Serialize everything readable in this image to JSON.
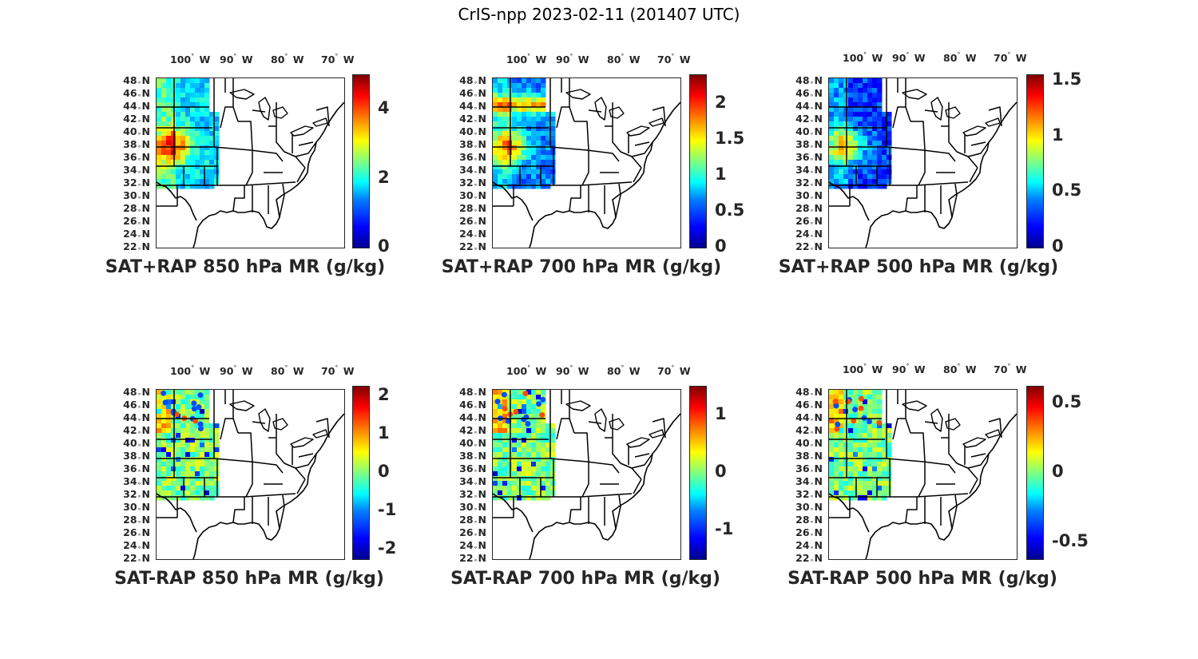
{
  "figure": {
    "title": "CrIS-npp 2023-02-11 (201407 UTC)"
  },
  "axes": {
    "lon_labels": [
      "100",
      "90",
      "80",
      "70"
    ],
    "lon_suffix": "W",
    "lat_labels": [
      "48",
      "46",
      "44",
      "42",
      "40",
      "38",
      "36",
      "34",
      "32",
      "30",
      "28",
      "26",
      "24",
      "22"
    ],
    "lat_suffix": "N",
    "degree_symbol": "°"
  },
  "panels": [
    {
      "id": "p1",
      "title": "SAT+RAP 850 hPa MR (g/kg)",
      "kind": "total",
      "colorbar": {
        "min": 0,
        "max": 5,
        "ticks": [
          "0",
          "2",
          "4"
        ],
        "tick_values": [
          0,
          2,
          4
        ]
      }
    },
    {
      "id": "p2",
      "title": "SAT+RAP 700 hPa MR (g/kg)",
      "kind": "total",
      "colorbar": {
        "min": 0,
        "max": 2.4,
        "ticks": [
          "0",
          "0.5",
          "1",
          "1.5",
          "2"
        ],
        "tick_values": [
          0,
          0.5,
          1,
          1.5,
          2
        ]
      }
    },
    {
      "id": "p3",
      "title": "SAT+RAP 500 hPa MR (g/kg)",
      "kind": "total",
      "colorbar": {
        "min": 0,
        "max": 1.55,
        "ticks": [
          "0",
          "0.5",
          "1",
          "1.5"
        ],
        "tick_values": [
          0,
          0.5,
          1,
          1.5
        ]
      }
    },
    {
      "id": "p4",
      "title": "SAT-RAP 850 hPa MR (g/kg)",
      "kind": "diff",
      "colorbar": {
        "min": -2.25,
        "max": 2.25,
        "ticks": [
          "-2",
          "-1",
          "0",
          "1",
          "2"
        ],
        "tick_values": [
          -2,
          -1,
          0,
          1,
          2
        ]
      }
    },
    {
      "id": "p5",
      "title": "SAT-RAP 700 hPa MR (g/kg)",
      "kind": "diff",
      "colorbar": {
        "min": -1.5,
        "max": 1.5,
        "ticks": [
          "-1",
          "0",
          "1"
        ],
        "tick_values": [
          -1,
          0,
          1
        ]
      }
    },
    {
      "id": "p6",
      "title": "SAT-RAP 500 hPa MR (g/kg)",
      "kind": "diff",
      "colorbar": {
        "min": -0.62,
        "max": 0.62,
        "ticks": [
          "-0.5",
          "0",
          "0.5"
        ],
        "tick_values": [
          -0.5,
          0,
          0.5
        ]
      }
    }
  ],
  "colors": {
    "jet": [
      "#00008f",
      "#0000ff",
      "#0080ff",
      "#00ffff",
      "#80ff80",
      "#ffff00",
      "#ff8000",
      "#ff0000",
      "#800000"
    ],
    "frame": "#262626",
    "coast": "#000000"
  }
}
